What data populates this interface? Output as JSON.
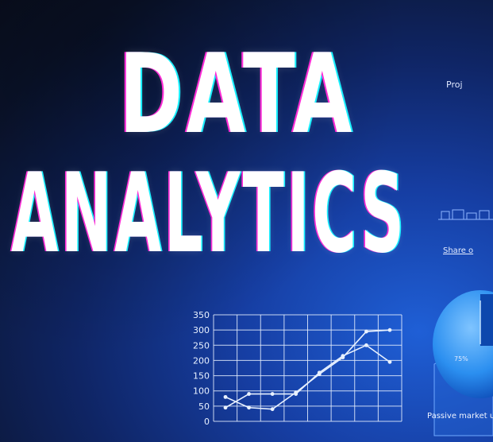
{
  "headline": {
    "line1": "DATA",
    "line2": "ANALYTICS"
  },
  "colors": {
    "headline_text": "#ffffff",
    "aberration_left": "#ff2bd6",
    "aberration_right": "#19f0ff",
    "chart_lines": "#e8f1ff",
    "background_dark": "#0a1022",
    "background_blue": "#1f5fd6"
  },
  "chart_data": {
    "type": "line",
    "x": [
      1,
      2,
      3,
      4,
      5,
      6,
      7,
      8
    ],
    "ylim": [
      0,
      350
    ],
    "yticks": [
      "0",
      "50",
      "100",
      "150",
      "200",
      "250",
      "300",
      "350"
    ],
    "series": [
      {
        "values": [
          80,
          45,
          40,
          95,
          155,
          210,
          295,
          300
        ]
      },
      {
        "values": [
          45,
          90,
          90,
          90,
          160,
          215,
          250,
          195
        ]
      }
    ],
    "grid": true
  },
  "right_panel": {
    "proj_label": "Proj",
    "share_label": "Share o",
    "pie_percent": "75%",
    "footer_text": "Passive market u"
  }
}
